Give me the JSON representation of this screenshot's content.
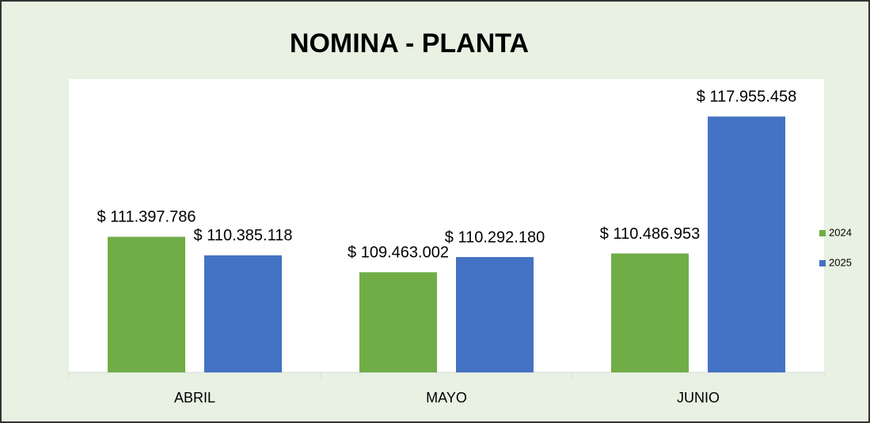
{
  "chart_data": {
    "type": "bar",
    "title": "NOMINA - PLANTA",
    "categories": [
      "ABRIL",
      "MAYO",
      "JUNIO"
    ],
    "series": [
      {
        "name": "2024",
        "color": "#70ad47",
        "values": [
          111397786,
          109463002,
          110486953
        ],
        "value_labels": [
          "$ 111.397.786",
          "$ 109.463.002",
          "$ 110.486.953"
        ]
      },
      {
        "name": "2025",
        "color": "#4472c4",
        "values": [
          110385118,
          110292180,
          117955458
        ],
        "value_labels": [
          "$ 110.385.118",
          "$ 110.292.180",
          "$ 117.955.458"
        ]
      }
    ],
    "ylim": [
      104000000,
      120000000
    ],
    "legend": "right"
  }
}
